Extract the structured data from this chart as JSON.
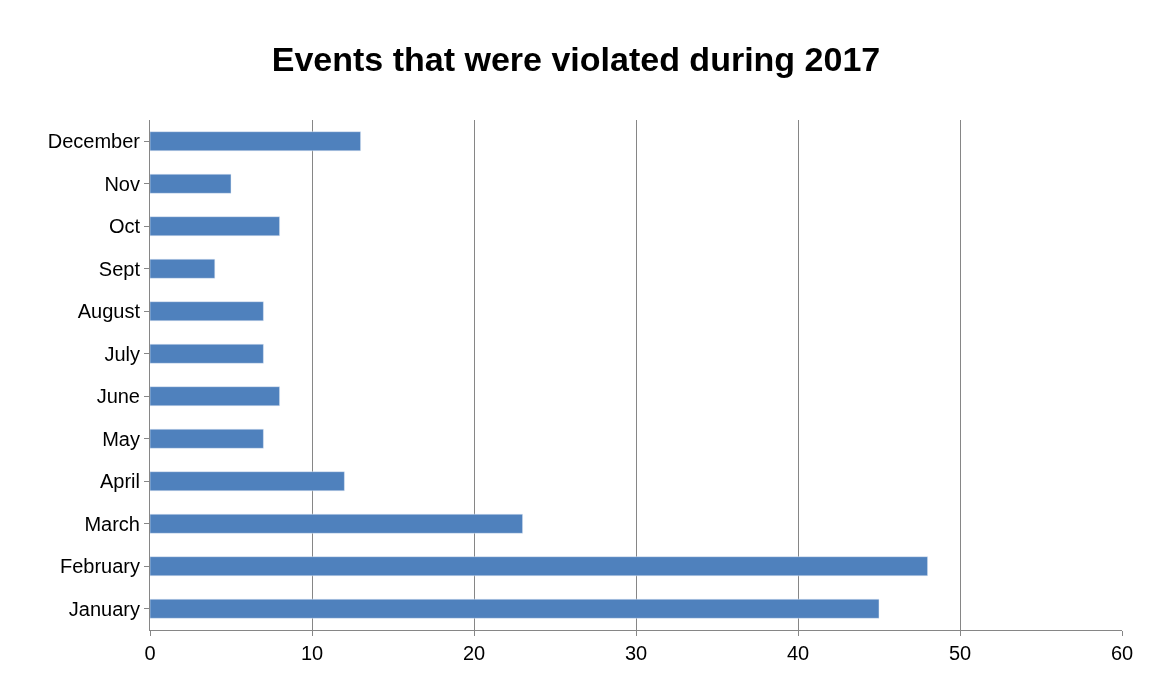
{
  "chart_data": {
    "type": "bar",
    "orientation": "horizontal",
    "title": "Events that were violated during 2017",
    "categories": [
      "December",
      "Nov",
      "Oct",
      "Sept",
      "August",
      "July",
      "June",
      "May",
      "April",
      "March",
      "February",
      "January"
    ],
    "values": [
      13,
      5,
      8,
      4,
      7,
      7,
      8,
      7,
      12,
      23,
      48,
      45
    ],
    "color": "#4f81bd",
    "xlim": [
      0,
      60
    ],
    "xticks": [
      0,
      10,
      20,
      30,
      40,
      50,
      60
    ],
    "grid": "x",
    "legend": false
  }
}
